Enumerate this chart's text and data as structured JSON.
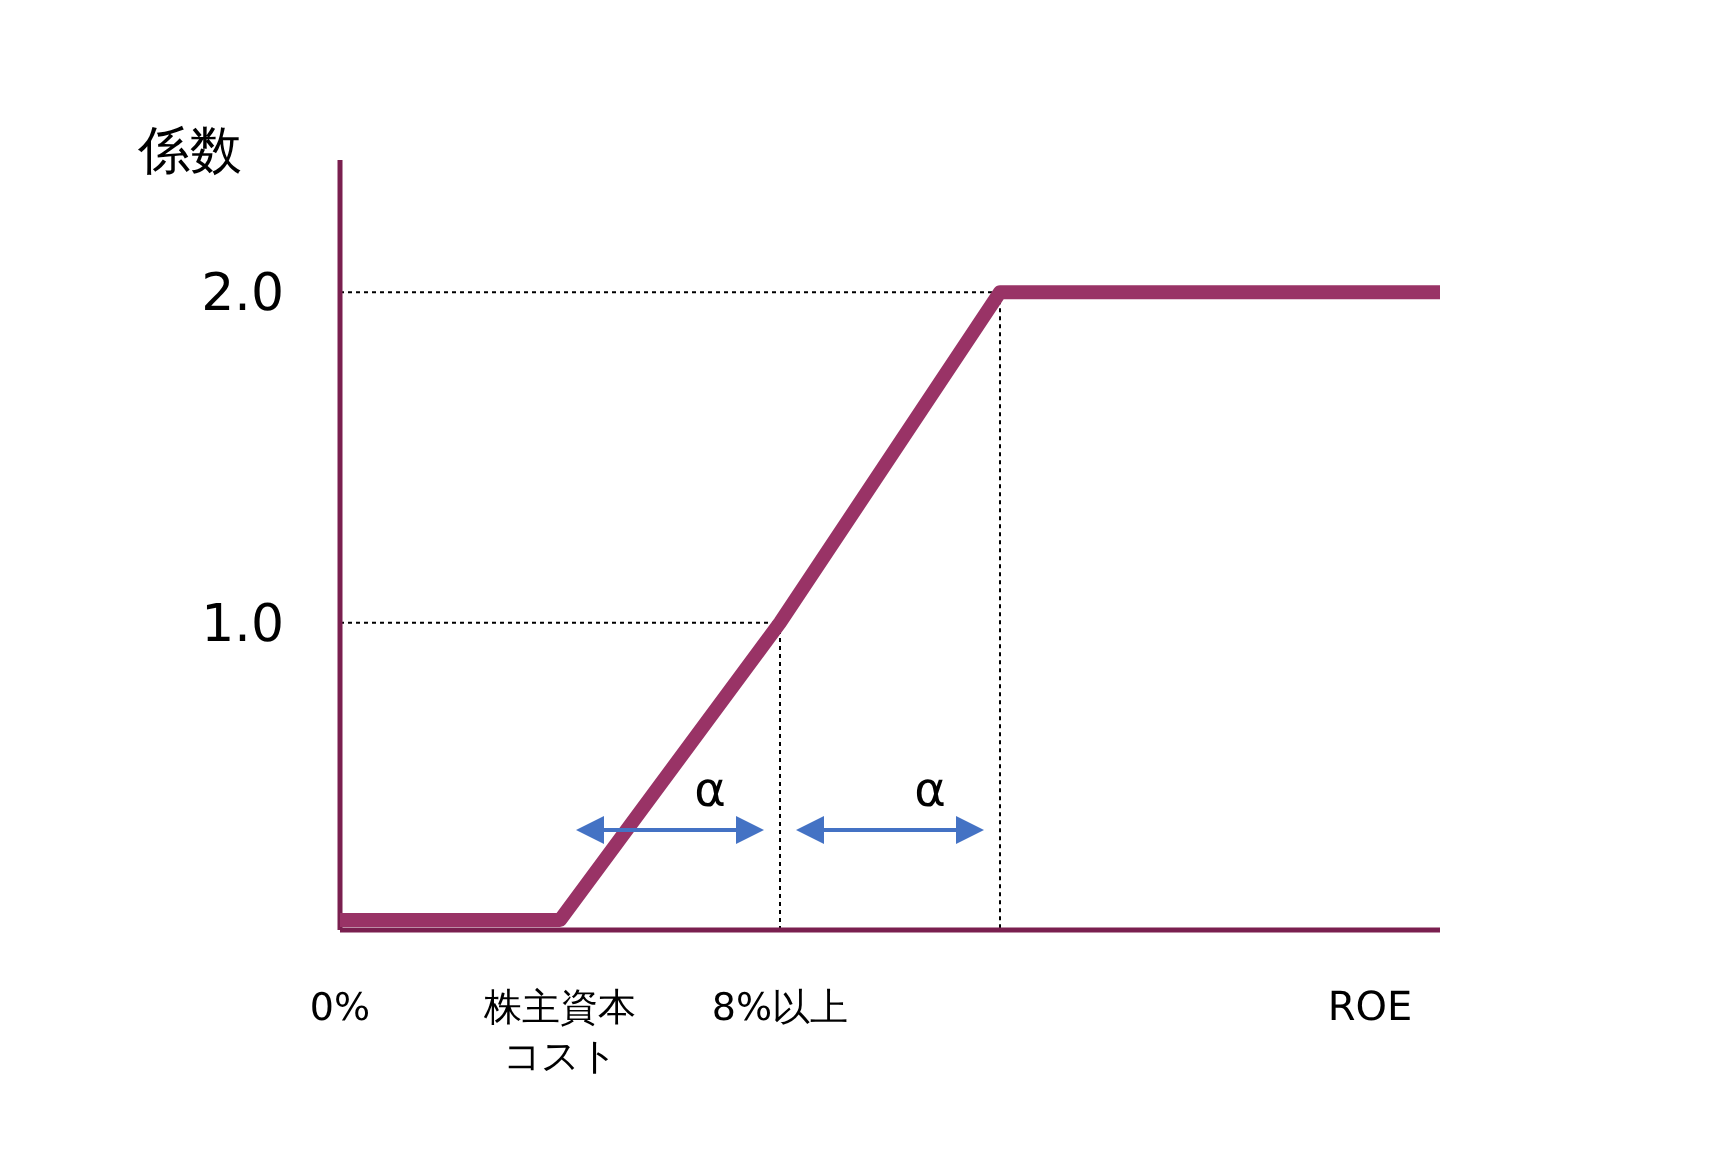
{
  "chart_data": {
    "type": "line",
    "ylabel": "係数",
    "xlabel": "ROE",
    "categories": [
      "0%",
      "株主資本コスト",
      "8%以上",
      null,
      null,
      null
    ],
    "series": [
      {
        "color": "#993366",
        "values": [
          0.1,
          0.1,
          1.0,
          2.0,
          2.0,
          2.0
        ]
      }
    ],
    "ylim": [
      0.07,
      2.4
    ],
    "yticks": [
      {
        "value": 1,
        "label": "1.0"
      },
      {
        "value": 2,
        "label": "2.0"
      }
    ],
    "ref_lines": [
      {
        "axis": "y",
        "value": 1,
        "line_style": "dotted",
        "color": "#000000"
      },
      {
        "axis": "y",
        "value": 2,
        "line_style": "dotted",
        "color": "#000000"
      },
      {
        "axis": "x",
        "value": "8%以上",
        "line_style": "dotted",
        "color": "#000000"
      }
    ],
    "annotations": [
      "α",
      "α"
    ],
    "line_style": "solid"
  }
}
